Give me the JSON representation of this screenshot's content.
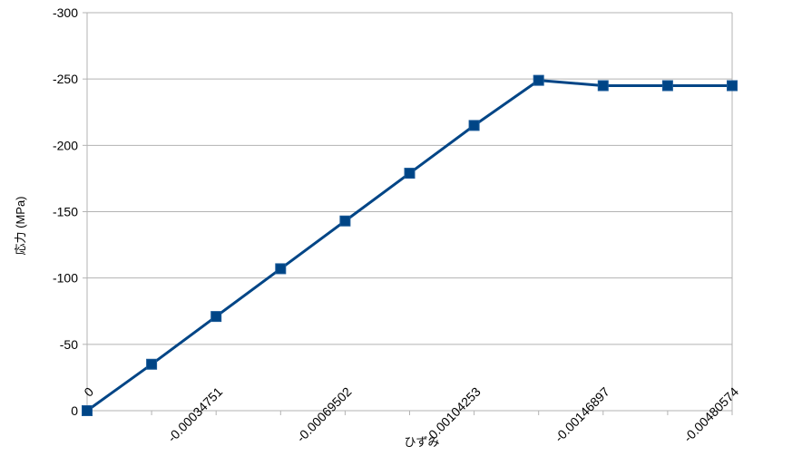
{
  "chart_data": {
    "type": "line",
    "title": "",
    "xlabel": "ひずみ",
    "ylabel": "応力 (MPa)",
    "ylim": [
      -300,
      0
    ],
    "yticks": [
      "-300",
      "-250",
      "-200",
      "-150",
      "-100",
      "-50",
      "0"
    ],
    "ytick_values": [
      -300,
      -250,
      -200,
      -150,
      -100,
      -50,
      0
    ],
    "x_tick_labels": [
      {
        "index": 0,
        "label": "0"
      },
      {
        "index": 2,
        "label": "-0.00034751"
      },
      {
        "index": 4,
        "label": "-0.00069502"
      },
      {
        "index": 6,
        "label": "-0.00104253"
      },
      {
        "index": 8,
        "label": "-0.00146897"
      },
      {
        "index": 10,
        "label": "-0.00480574"
      }
    ],
    "series": [
      {
        "values": [
          0,
          -35,
          -71,
          -107,
          -143,
          -179,
          -215,
          -249,
          -245,
          -245,
          -245
        ],
        "color": "#004586",
        "marker": "square"
      }
    ],
    "grid": true,
    "legend": "none"
  }
}
